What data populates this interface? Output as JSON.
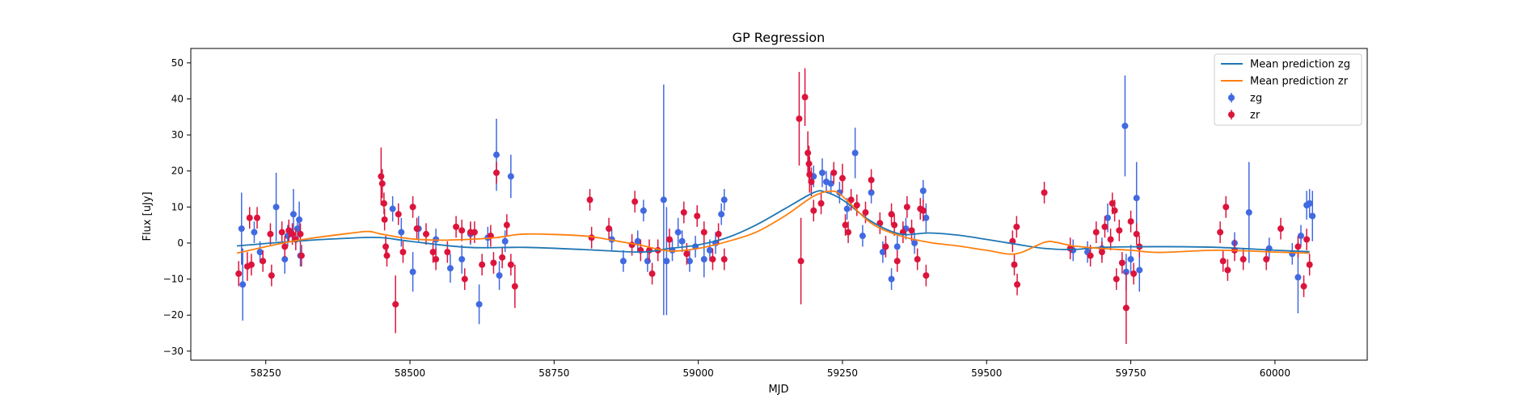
{
  "chart_data": {
    "type": "scatter",
    "title": "GP Regression",
    "xlabel": "MJD",
    "ylabel": "Flux [uJy]",
    "xlim": [
      58120,
      60160
    ],
    "ylim": [
      -32.5,
      54
    ],
    "xticks": [
      58250,
      58500,
      58750,
      59000,
      59250,
      59500,
      59750,
      60000
    ],
    "yticks": [
      -30,
      -20,
      -10,
      0,
      10,
      20,
      30,
      40,
      50
    ],
    "grid": false,
    "legend_position": "top-right",
    "colors": {
      "zg": "#4169e1",
      "zr": "#dc143c",
      "mean_zg": "#1f77b4",
      "mean_zr": "#ff7f0e"
    },
    "lines": [
      {
        "name": "Mean prediction zg",
        "color": "#1f77b4",
        "x": [
          58200,
          58300,
          58400,
          58450,
          58500,
          58600,
          58700,
          58800,
          58900,
          58950,
          59000,
          59050,
          59100,
          59150,
          59200,
          59220,
          59250,
          59300,
          59350,
          59400,
          59450,
          59500,
          59550,
          59600,
          59650,
          59700,
          59800,
          59900,
          60000,
          60060
        ],
        "y": [
          -0.8,
          0.5,
          1.4,
          1.5,
          0.5,
          -1.2,
          -1.2,
          -1.8,
          -2.5,
          -1.5,
          -0.5,
          1.5,
          5,
          9.5,
          14,
          14.2,
          12,
          6,
          2.5,
          2.8,
          2.2,
          1,
          -0.3,
          -1.5,
          -1.8,
          -1.2,
          -1,
          -1.2,
          -2,
          -2.4
        ]
      },
      {
        "name": "Mean prediction zr",
        "color": "#ff7f0e",
        "x": [
          58200,
          58300,
          58400,
          58430,
          58450,
          58500,
          58550,
          58600,
          58650,
          58700,
          58800,
          58850,
          58900,
          58950,
          59000,
          59050,
          59100,
          59150,
          59200,
          59230,
          59250,
          59300,
          59350,
          59400,
          59450,
          59500,
          59550,
          59600,
          59620,
          59650,
          59700,
          59750,
          59800,
          59900,
          60000,
          60060
        ],
        "y": [
          -2.8,
          0.6,
          2.8,
          3.2,
          2.5,
          1.2,
          0.8,
          1,
          1.5,
          2.5,
          2,
          0.8,
          -0.6,
          -2.2,
          -1.5,
          0.4,
          3,
          7.5,
          13,
          14.4,
          13,
          5.5,
          2,
          0.2,
          -0.8,
          -2,
          -3,
          0.2,
          0.2,
          -0.8,
          -1.5,
          -2,
          -2.6,
          -2,
          -2.5,
          -2.8
        ]
      }
    ],
    "series": [
      {
        "name": "zg",
        "color": "#4169e1",
        "points": [
          [
            58208,
            4,
            10
          ],
          [
            58210,
            -11.5,
            10
          ],
          [
            58230,
            3,
            3
          ],
          [
            58240,
            -2.5,
            3
          ],
          [
            58268,
            10,
            9.5
          ],
          [
            58283,
            -4.5,
            4
          ],
          [
            58288,
            2,
            3
          ],
          [
            58298,
            8,
            7
          ],
          [
            58305,
            4,
            3
          ],
          [
            58308,
            6.5,
            5
          ],
          [
            58310,
            -3.5,
            3
          ],
          [
            58470,
            9.5,
            3.5
          ],
          [
            58485,
            3,
            4
          ],
          [
            58505,
            -8,
            5.5
          ],
          [
            58515,
            4,
            3.5
          ],
          [
            58545,
            1,
            3
          ],
          [
            58570,
            -7,
            4
          ],
          [
            58590,
            -4.5,
            4
          ],
          [
            58605,
            2.5,
            3
          ],
          [
            58620,
            -17,
            5.5
          ],
          [
            58635,
            1.5,
            3
          ],
          [
            58650,
            24.5,
            10
          ],
          [
            58655,
            -9,
            4
          ],
          [
            58665,
            0.5,
            3
          ],
          [
            58675,
            18.5,
            6
          ],
          [
            58850,
            1,
            3
          ],
          [
            58870,
            -5,
            3
          ],
          [
            58895,
            0.5,
            3
          ],
          [
            58905,
            9,
            3
          ],
          [
            58912,
            -5,
            3
          ],
          [
            58940,
            12,
            32
          ],
          [
            58945,
            -5,
            15
          ],
          [
            58955,
            -2,
            3
          ],
          [
            58965,
            3,
            4
          ],
          [
            58972,
            0.5,
            3
          ],
          [
            58985,
            -5,
            3
          ],
          [
            58995,
            -1,
            3
          ],
          [
            59010,
            -4.5,
            5
          ],
          [
            59020,
            -2,
            3
          ],
          [
            59030,
            0,
            3
          ],
          [
            59040,
            8,
            3
          ],
          [
            59045,
            12,
            3
          ],
          [
            59200,
            18.5,
            3
          ],
          [
            59215,
            19.5,
            4
          ],
          [
            59222,
            17,
            3
          ],
          [
            59230,
            16.5,
            3
          ],
          [
            59245,
            14,
            3
          ],
          [
            59258,
            9.5,
            3
          ],
          [
            59272,
            25,
            7
          ],
          [
            59285,
            2,
            3
          ],
          [
            59300,
            14,
            3
          ],
          [
            59320,
            -2.5,
            3
          ],
          [
            59335,
            -10,
            3
          ],
          [
            59345,
            -1,
            3
          ],
          [
            59360,
            4,
            3
          ],
          [
            59375,
            0,
            3
          ],
          [
            59390,
            14.5,
            3
          ],
          [
            59395,
            7,
            4
          ],
          [
            59650,
            -2,
            3
          ],
          [
            59675,
            -2.5,
            3
          ],
          [
            59700,
            -1.5,
            3
          ],
          [
            59710,
            7,
            4
          ],
          [
            59740,
            32.5,
            14
          ],
          [
            59742,
            -8,
            5
          ],
          [
            59750,
            -4.5,
            4
          ],
          [
            59760,
            12.5,
            10
          ],
          [
            59765,
            -7.5,
            6
          ],
          [
            59930,
            0,
            3
          ],
          [
            59955,
            8.5,
            14
          ],
          [
            59990,
            -1.5,
            3
          ],
          [
            60030,
            -3,
            3
          ],
          [
            60040,
            -9.5,
            10
          ],
          [
            60045,
            2,
            3
          ],
          [
            60055,
            10.5,
            4
          ],
          [
            60060,
            11,
            4
          ],
          [
            60065,
            7.5,
            7
          ]
        ]
      },
      {
        "name": "zr",
        "color": "#dc143c",
        "points": [
          [
            58203,
            -8.5,
            3.5
          ],
          [
            58218,
            -6.5,
            4
          ],
          [
            58222,
            7,
            3
          ],
          [
            58225,
            -6,
            3
          ],
          [
            58235,
            7,
            3
          ],
          [
            58245,
            -5,
            3
          ],
          [
            58258,
            2.5,
            3
          ],
          [
            58260,
            -9,
            3
          ],
          [
            58278,
            3,
            3
          ],
          [
            58283,
            -1,
            3
          ],
          [
            58290,
            3.5,
            3
          ],
          [
            58296,
            2.5,
            3
          ],
          [
            58302,
            1,
            3
          ],
          [
            58310,
            2.5,
            3
          ],
          [
            58312,
            -3.5,
            3
          ],
          [
            58450,
            18.5,
            8
          ],
          [
            58452,
            16.5,
            4
          ],
          [
            58455,
            11,
            3
          ],
          [
            58456,
            6.5,
            3
          ],
          [
            58458,
            -1,
            3
          ],
          [
            58460,
            -3.5,
            3
          ],
          [
            58475,
            -17,
            8
          ],
          [
            58480,
            8,
            3
          ],
          [
            58488,
            -2.5,
            3
          ],
          [
            58505,
            10,
            3
          ],
          [
            58512,
            4,
            3
          ],
          [
            58528,
            2.5,
            3
          ],
          [
            58540,
            -2.5,
            3
          ],
          [
            58545,
            -4.5,
            3
          ],
          [
            58565,
            -2.5,
            3
          ],
          [
            58580,
            4.5,
            3
          ],
          [
            58590,
            3.5,
            3
          ],
          [
            58595,
            -10,
            3
          ],
          [
            58605,
            3,
            3
          ],
          [
            58612,
            3,
            3
          ],
          [
            58625,
            -6,
            3
          ],
          [
            58640,
            2,
            3
          ],
          [
            58645,
            -5.5,
            3
          ],
          [
            58650,
            19.5,
            3
          ],
          [
            58660,
            -4,
            3
          ],
          [
            58668,
            5,
            3
          ],
          [
            58675,
            -6,
            3
          ],
          [
            58682,
            -12,
            6
          ],
          [
            58812,
            12,
            3
          ],
          [
            58815,
            1.5,
            3
          ],
          [
            58845,
            4,
            3
          ],
          [
            58885,
            -0.5,
            3
          ],
          [
            58890,
            11.5,
            3
          ],
          [
            58900,
            -2,
            3
          ],
          [
            58915,
            -2,
            3
          ],
          [
            58920,
            -8.5,
            3
          ],
          [
            58930,
            -2,
            3
          ],
          [
            58950,
            1,
            3
          ],
          [
            58975,
            8.5,
            3
          ],
          [
            58980,
            -3,
            3
          ],
          [
            58998,
            7.5,
            3
          ],
          [
            59010,
            3,
            3
          ],
          [
            59025,
            -4.5,
            3
          ],
          [
            59035,
            2.5,
            3
          ],
          [
            59045,
            -4.5,
            3
          ],
          [
            59175,
            34.5,
            13
          ],
          [
            59178,
            -5,
            12
          ],
          [
            59185,
            40.5,
            8
          ],
          [
            59190,
            25,
            6
          ],
          [
            59192,
            22,
            5
          ],
          [
            59193,
            19,
            5
          ],
          [
            59196,
            17,
            4
          ],
          [
            59200,
            9,
            3
          ],
          [
            59213,
            11,
            3
          ],
          [
            59235,
            19.5,
            3
          ],
          [
            59250,
            18,
            4
          ],
          [
            59255,
            5,
            3
          ],
          [
            59260,
            3,
            3
          ],
          [
            59265,
            12,
            3
          ],
          [
            59275,
            10.5,
            3
          ],
          [
            59290,
            8.5,
            3
          ],
          [
            59300,
            17.5,
            3
          ],
          [
            59315,
            5.5,
            3
          ],
          [
            59325,
            -1,
            3
          ],
          [
            59335,
            8,
            3
          ],
          [
            59340,
            5,
            3
          ],
          [
            59345,
            -5,
            3
          ],
          [
            59355,
            3,
            3
          ],
          [
            59362,
            10,
            3
          ],
          [
            59370,
            3.5,
            3
          ],
          [
            59380,
            -4.5,
            3
          ],
          [
            59385,
            9.5,
            3
          ],
          [
            59390,
            9,
            3
          ],
          [
            59395,
            -9,
            3
          ],
          [
            59545,
            0.5,
            3
          ],
          [
            59548,
            -6,
            3
          ],
          [
            59552,
            4.5,
            3
          ],
          [
            59553,
            -11.5,
            3
          ],
          [
            59600,
            14,
            3
          ],
          [
            59645,
            -1.5,
            3
          ],
          [
            59680,
            -3.5,
            3
          ],
          [
            59690,
            3,
            3
          ],
          [
            59700,
            -2.5,
            3
          ],
          [
            59705,
            4.5,
            3
          ],
          [
            59715,
            1,
            3
          ],
          [
            59718,
            11,
            3
          ],
          [
            59722,
            9,
            3
          ],
          [
            59725,
            -10,
            3
          ],
          [
            59730,
            3.5,
            3
          ],
          [
            59735,
            -5.5,
            3
          ],
          [
            59742,
            -18,
            10
          ],
          [
            59750,
            6,
            3
          ],
          [
            59755,
            -8.5,
            3
          ],
          [
            59760,
            2.5,
            3
          ],
          [
            59765,
            -1,
            3
          ],
          [
            59905,
            3,
            3
          ],
          [
            59910,
            -5,
            3
          ],
          [
            59915,
            10,
            3
          ],
          [
            59918,
            -7.5,
            3
          ],
          [
            59930,
            -2,
            3
          ],
          [
            59945,
            -4.5,
            3
          ],
          [
            59985,
            -4.5,
            3
          ],
          [
            60010,
            4,
            3
          ],
          [
            60040,
            -1,
            3
          ],
          [
            60050,
            -12,
            3
          ],
          [
            60055,
            1,
            3
          ],
          [
            60060,
            -6,
            3
          ]
        ]
      }
    ]
  },
  "legend": [
    {
      "label": "Mean prediction zg",
      "kind": "line",
      "color": "#1f77b4"
    },
    {
      "label": "Mean prediction zr",
      "kind": "line",
      "color": "#ff7f0e"
    },
    {
      "label": "zg",
      "kind": "marker",
      "color": "#4169e1"
    },
    {
      "label": "zr",
      "kind": "marker",
      "color": "#dc143c"
    }
  ]
}
